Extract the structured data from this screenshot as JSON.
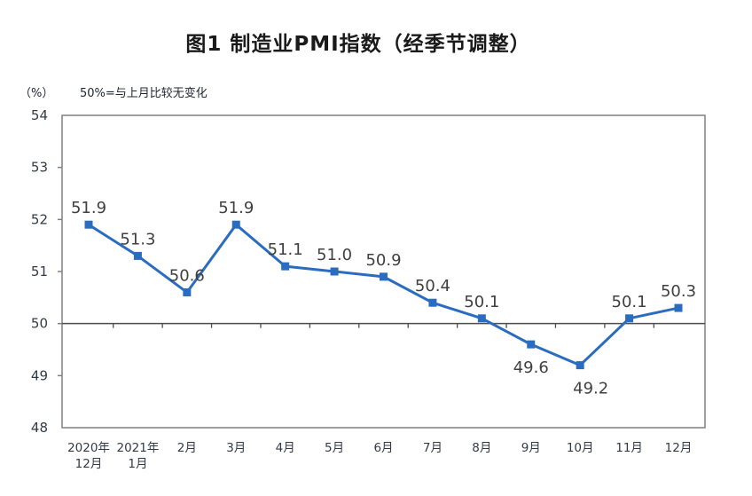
{
  "title": "图1 制造业PMI指数（经季节调整）",
  "unit_label": "（%）",
  "reference_note": "50%=与上月比较无变化",
  "colors": {
    "line": "#2A6CC0",
    "plot_border": "#808080",
    "reference_line": "#4d4d4d",
    "axis_text": "#333a47",
    "data_label": "#404040",
    "title_text": "#1a1a1a"
  },
  "chart_data": {
    "type": "line",
    "title": "图1 制造业PMI指数（经季节调整）",
    "subtitle": "50%=与上月比较无变化",
    "ylabel": "（%）",
    "categories": [
      [
        "2020年",
        "12月"
      ],
      [
        "2021年",
        "1月"
      ],
      [
        "2月"
      ],
      [
        "3月"
      ],
      [
        "4月"
      ],
      [
        "5月"
      ],
      [
        "6月"
      ],
      [
        "7月"
      ],
      [
        "8月"
      ],
      [
        "9月"
      ],
      [
        "10月"
      ],
      [
        "11月"
      ],
      [
        "12月"
      ]
    ],
    "series": [
      {
        "name": "制造业PMI",
        "values": [
          51.9,
          51.3,
          50.6,
          51.9,
          51.1,
          51.0,
          50.9,
          50.4,
          50.1,
          49.6,
          49.2,
          50.1,
          50.3
        ]
      }
    ],
    "ylim": [
      48,
      54
    ],
    "ytick_step": 1,
    "reference_line": 50,
    "grid": false,
    "legend": "none"
  }
}
